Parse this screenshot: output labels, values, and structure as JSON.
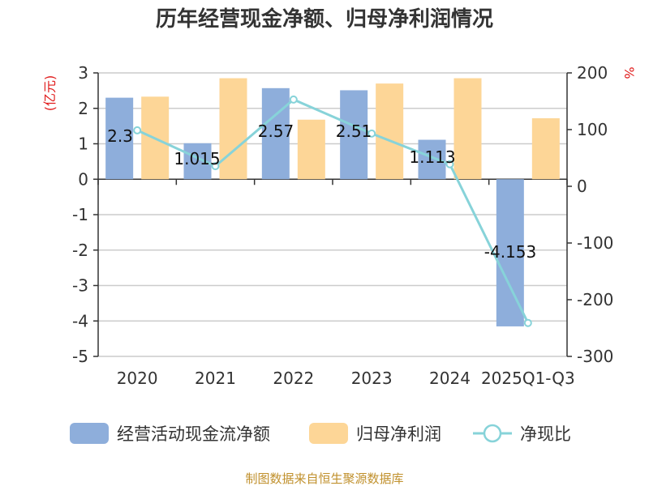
{
  "chart_data": {
    "type": "bar",
    "title": "历年经营现金净额、归母净利润情况",
    "categories": [
      "2020",
      "2021",
      "2022",
      "2023",
      "2024",
      "2025Q1-Q3"
    ],
    "left_unit": "(亿元)",
    "right_unit": "%",
    "ylim_left": [
      -5,
      3
    ],
    "ylim_right": [
      -300,
      200
    ],
    "left_ticks": [
      "3",
      "2",
      "1",
      "0",
      "-1",
      "-2",
      "-3",
      "-4",
      "-5"
    ],
    "right_ticks": [
      "200",
      "100",
      "0",
      "-100",
      "-200",
      "-300"
    ],
    "grid": true,
    "legend_position": "bottom",
    "series": [
      {
        "name": "经营活动现金流净额",
        "kind": "bar",
        "axis": "left",
        "color": "#8eaedb",
        "values": [
          2.3,
          1.015,
          2.57,
          2.51,
          1.113,
          -4.153
        ],
        "labels": [
          "2.3",
          "1.015",
          "2.57",
          "2.51",
          "1.113",
          "-4.153"
        ]
      },
      {
        "name": "归母净利润",
        "kind": "bar",
        "axis": "left",
        "color": "#fdd697",
        "values": [
          2.33,
          2.85,
          1.68,
          2.7,
          2.85,
          1.72
        ]
      },
      {
        "name": "净现比",
        "kind": "line",
        "axis": "right",
        "color": "#87d3d9",
        "values": [
          98.7,
          35.6,
          153,
          93,
          38.9,
          -241
        ]
      }
    ]
  },
  "source_text": "制图数据来自恒生聚源数据库"
}
